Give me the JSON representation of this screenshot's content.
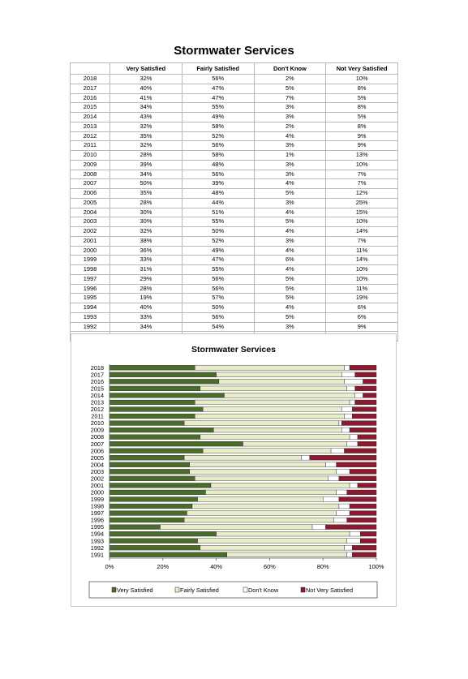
{
  "page": {
    "title": "Stormwater Services"
  },
  "table": {
    "headers": [
      "",
      "Very Satisfied",
      "Fairly Satisfied",
      "Don't Know",
      "Not Very Satisfied"
    ],
    "rows": [
      [
        "2018",
        "32%",
        "56%",
        "2%",
        "10%"
      ],
      [
        "2017",
        "40%",
        "47%",
        "5%",
        "8%"
      ],
      [
        "2016",
        "41%",
        "47%",
        "7%",
        "5%"
      ],
      [
        "2015",
        "34%",
        "55%",
        "3%",
        "8%"
      ],
      [
        "2014",
        "43%",
        "49%",
        "3%",
        "5%"
      ],
      [
        "2013",
        "32%",
        "58%",
        "2%",
        "8%"
      ],
      [
        "2012",
        "35%",
        "52%",
        "4%",
        "9%"
      ],
      [
        "2011",
        "32%",
        "56%",
        "3%",
        "9%"
      ],
      [
        "2010",
        "28%",
        "58%",
        "1%",
        "13%"
      ],
      [
        "2009",
        "39%",
        "48%",
        "3%",
        "10%"
      ],
      [
        "2008",
        "34%",
        "56%",
        "3%",
        "7%"
      ],
      [
        "2007",
        "50%",
        "39%",
        "4%",
        "7%"
      ],
      [
        "2006",
        "35%",
        "48%",
        "5%",
        "12%"
      ],
      [
        "2005",
        "28%",
        "44%",
        "3%",
        "25%"
      ],
      [
        "2004",
        "30%",
        "51%",
        "4%",
        "15%"
      ],
      [
        "2003",
        "30%",
        "55%",
        "5%",
        "10%"
      ],
      [
        "2002",
        "32%",
        "50%",
        "4%",
        "14%"
      ],
      [
        "2001",
        "38%",
        "52%",
        "3%",
        "7%"
      ],
      [
        "2000",
        "36%",
        "49%",
        "4%",
        "11%"
      ],
      [
        "1999",
        "33%",
        "47%",
        "6%",
        "14%"
      ],
      [
        "1998",
        "31%",
        "55%",
        "4%",
        "10%"
      ],
      [
        "1997",
        "29%",
        "56%",
        "5%",
        "10%"
      ],
      [
        "1996",
        "28%",
        "56%",
        "5%",
        "11%"
      ],
      [
        "1995",
        "19%",
        "57%",
        "5%",
        "19%"
      ],
      [
        "1994",
        "40%",
        "50%",
        "4%",
        "6%"
      ],
      [
        "1993",
        "33%",
        "56%",
        "5%",
        "6%"
      ],
      [
        "1992",
        "34%",
        "54%",
        "3%",
        "9%"
      ],
      [
        "1991",
        "44%",
        "45%",
        "2%",
        "9%"
      ]
    ]
  },
  "chart_data": {
    "type": "bar",
    "orientation": "horizontal",
    "stacked": "percent",
    "title": "Stormwater Services",
    "xlabel": "",
    "ylabel": "",
    "xlim": [
      0,
      100
    ],
    "x_ticks": [
      "0%",
      "20%",
      "40%",
      "60%",
      "80%",
      "100%"
    ],
    "grid": false,
    "legend_position": "bottom",
    "categories": [
      "2018",
      "2017",
      "2016",
      "2015",
      "2014",
      "2013",
      "2012",
      "2011",
      "2010",
      "2009",
      "2008",
      "2007",
      "2006",
      "2005",
      "2004",
      "2003",
      "2002",
      "2001",
      "2000",
      "1999",
      "1998",
      "1997",
      "1996",
      "1995",
      "1994",
      "1993",
      "1992",
      "1991"
    ],
    "series": [
      {
        "name": "Very Satisfied",
        "color": "#4a6b2a",
        "values": [
          32,
          40,
          41,
          34,
          43,
          32,
          35,
          32,
          28,
          39,
          34,
          50,
          35,
          28,
          30,
          30,
          32,
          38,
          36,
          33,
          31,
          29,
          28,
          19,
          40,
          33,
          34,
          44
        ]
      },
      {
        "name": "Fairly Satisfied",
        "color": "#e8ecc8",
        "values": [
          56,
          47,
          47,
          55,
          49,
          58,
          52,
          56,
          58,
          48,
          56,
          39,
          48,
          44,
          51,
          55,
          50,
          52,
          49,
          47,
          55,
          56,
          56,
          57,
          50,
          56,
          54,
          45
        ]
      },
      {
        "name": "Don't Know",
        "color": "#ffffff",
        "values": [
          2,
          5,
          7,
          3,
          3,
          2,
          4,
          3,
          1,
          3,
          3,
          4,
          5,
          3,
          4,
          5,
          4,
          3,
          4,
          6,
          4,
          5,
          5,
          5,
          4,
          5,
          3,
          2
        ]
      },
      {
        "name": "Not Very Satisfied",
        "color": "#8b1a2e",
        "values": [
          10,
          8,
          5,
          8,
          5,
          8,
          9,
          9,
          13,
          10,
          7,
          7,
          12,
          25,
          15,
          10,
          14,
          7,
          11,
          14,
          10,
          10,
          11,
          19,
          6,
          6,
          9,
          9
        ]
      }
    ]
  }
}
